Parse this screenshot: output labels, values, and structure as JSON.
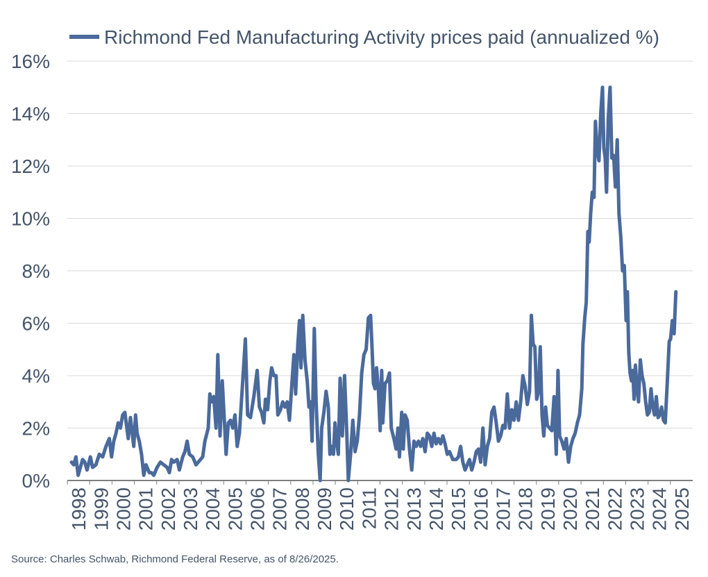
{
  "chart_data": {
    "type": "line",
    "title": "",
    "xlabel": "",
    "ylabel": "",
    "ylim": [
      0,
      16
    ],
    "y_ticks": [
      0,
      2,
      4,
      6,
      8,
      10,
      12,
      14,
      16
    ],
    "y_tick_labels": [
      "0%",
      "2%",
      "4%",
      "6%",
      "8%",
      "10%",
      "12%",
      "14%",
      "16%"
    ],
    "xlim": [
      1998.0,
      2025.75
    ],
    "x_tick_labels": [
      "1998",
      "1999",
      "2000",
      "2001",
      "2002",
      "2003",
      "2004",
      "2005",
      "2006",
      "2007",
      "2008",
      "2009",
      "2010",
      "2011",
      "2012",
      "2013",
      "2014",
      "2015",
      "2016",
      "2017",
      "2018",
      "2019",
      "2020",
      "2021",
      "2022",
      "2023",
      "2024",
      "2025"
    ],
    "grid": true,
    "legend_position": "top",
    "line_color": "#4a6a9c",
    "series": [
      {
        "name": "Richmond Fed Manufacturing Activity prices paid (annualized %)",
        "points": [
          [
            1998.0,
            0.7
          ],
          [
            1998.1,
            0.6
          ],
          [
            1998.2,
            0.9
          ],
          [
            1998.3,
            0.2
          ],
          [
            1998.5,
            0.8
          ],
          [
            1998.6,
            0.7
          ],
          [
            1998.7,
            0.4
          ],
          [
            1998.85,
            0.9
          ],
          [
            1998.95,
            0.5
          ],
          [
            1999.1,
            0.6
          ],
          [
            1999.25,
            1.0
          ],
          [
            1999.4,
            0.9
          ],
          [
            1999.55,
            1.3
          ],
          [
            1999.7,
            1.6
          ],
          [
            1999.8,
            0.9
          ],
          [
            1999.9,
            1.5
          ],
          [
            2000.0,
            1.8
          ],
          [
            2000.1,
            2.2
          ],
          [
            2000.2,
            2.0
          ],
          [
            2000.3,
            2.5
          ],
          [
            2000.4,
            2.6
          ],
          [
            2000.55,
            1.6
          ],
          [
            2000.65,
            2.4
          ],
          [
            2000.8,
            1.3
          ],
          [
            2000.88,
            2.5
          ],
          [
            2000.95,
            1.8
          ],
          [
            2001.05,
            1.5
          ],
          [
            2001.15,
            1.0
          ],
          [
            2001.25,
            0.2
          ],
          [
            2001.35,
            0.6
          ],
          [
            2001.5,
            0.3
          ],
          [
            2001.6,
            0.3
          ],
          [
            2001.7,
            0.2
          ],
          [
            2001.85,
            0.5
          ],
          [
            2002.0,
            0.7
          ],
          [
            2002.15,
            0.6
          ],
          [
            2002.3,
            0.5
          ],
          [
            2002.4,
            0.3
          ],
          [
            2002.5,
            0.8
          ],
          [
            2002.6,
            0.7
          ],
          [
            2002.75,
            0.8
          ],
          [
            2002.85,
            0.4
          ],
          [
            2003.0,
            0.9
          ],
          [
            2003.1,
            1.1
          ],
          [
            2003.2,
            1.5
          ],
          [
            2003.3,
            1.0
          ],
          [
            2003.45,
            0.9
          ],
          [
            2003.6,
            0.6
          ],
          [
            2003.8,
            0.8
          ],
          [
            2003.9,
            0.9
          ],
          [
            2004.0,
            1.5
          ],
          [
            2004.15,
            2.0
          ],
          [
            2004.22,
            3.3
          ],
          [
            2004.3,
            3.0
          ],
          [
            2004.4,
            3.2
          ],
          [
            2004.5,
            2.0
          ],
          [
            2004.58,
            4.8
          ],
          [
            2004.68,
            1.7
          ],
          [
            2004.78,
            3.8
          ],
          [
            2004.88,
            2.2
          ],
          [
            2004.95,
            1.0
          ],
          [
            2005.05,
            2.2
          ],
          [
            2005.15,
            2.3
          ],
          [
            2005.25,
            2.0
          ],
          [
            2005.35,
            2.5
          ],
          [
            2005.45,
            1.3
          ],
          [
            2005.55,
            1.8
          ],
          [
            2005.7,
            3.8
          ],
          [
            2005.82,
            5.4
          ],
          [
            2005.92,
            2.5
          ],
          [
            2006.05,
            2.4
          ],
          [
            2006.2,
            3.2
          ],
          [
            2006.35,
            4.2
          ],
          [
            2006.45,
            2.8
          ],
          [
            2006.55,
            2.6
          ],
          [
            2006.65,
            2.2
          ],
          [
            2006.72,
            3.1
          ],
          [
            2006.82,
            2.7
          ],
          [
            2006.92,
            3.8
          ],
          [
            2007.0,
            4.3
          ],
          [
            2007.1,
            4.0
          ],
          [
            2007.2,
            4.0
          ],
          [
            2007.28,
            2.5
          ],
          [
            2007.4,
            2.7
          ],
          [
            2007.5,
            3.0
          ],
          [
            2007.6,
            2.8
          ],
          [
            2007.7,
            3.0
          ],
          [
            2007.8,
            2.3
          ],
          [
            2007.92,
            3.8
          ],
          [
            2008.0,
            4.8
          ],
          [
            2008.08,
            3.3
          ],
          [
            2008.18,
            5.2
          ],
          [
            2008.25,
            6.1
          ],
          [
            2008.32,
            4.3
          ],
          [
            2008.4,
            6.3
          ],
          [
            2008.5,
            4.6
          ],
          [
            2008.6,
            3.8
          ],
          [
            2008.68,
            2.8
          ],
          [
            2008.75,
            3.0
          ],
          [
            2008.82,
            1.5
          ],
          [
            2008.92,
            5.8
          ],
          [
            2009.0,
            3.0
          ],
          [
            2009.1,
            1.0
          ],
          [
            2009.18,
            0.0
          ],
          [
            2009.25,
            2.0
          ],
          [
            2009.35,
            2.6
          ],
          [
            2009.45,
            3.4
          ],
          [
            2009.55,
            2.8
          ],
          [
            2009.62,
            1.0
          ],
          [
            2009.7,
            1.3
          ],
          [
            2009.78,
            1.0
          ],
          [
            2009.85,
            2.2
          ],
          [
            2009.92,
            1.5
          ],
          [
            2010.0,
            1.0
          ],
          [
            2010.08,
            3.9
          ],
          [
            2010.18,
            1.7
          ],
          [
            2010.28,
            4.0
          ],
          [
            2010.38,
            1.8
          ],
          [
            2010.45,
            0.0
          ],
          [
            2010.55,
            1.0
          ],
          [
            2010.65,
            2.3
          ],
          [
            2010.75,
            1.1
          ],
          [
            2010.85,
            1.5
          ],
          [
            2010.95,
            2.5
          ],
          [
            2011.05,
            4.1
          ],
          [
            2011.15,
            4.8
          ],
          [
            2011.25,
            5.0
          ],
          [
            2011.35,
            6.2
          ],
          [
            2011.45,
            6.3
          ],
          [
            2011.52,
            5.0
          ],
          [
            2011.58,
            3.7
          ],
          [
            2011.65,
            3.5
          ],
          [
            2011.72,
            4.3
          ],
          [
            2011.8,
            3.5
          ],
          [
            2011.88,
            1.9
          ],
          [
            2011.95,
            4.2
          ],
          [
            2012.0,
            2.2
          ],
          [
            2012.1,
            3.7
          ],
          [
            2012.2,
            3.8
          ],
          [
            2012.3,
            4.1
          ],
          [
            2012.38,
            2.0
          ],
          [
            2012.5,
            1.6
          ],
          [
            2012.6,
            1.2
          ],
          [
            2012.68,
            2.0
          ],
          [
            2012.75,
            0.9
          ],
          [
            2012.85,
            2.6
          ],
          [
            2012.92,
            1.2
          ],
          [
            2013.0,
            2.5
          ],
          [
            2013.1,
            2.3
          ],
          [
            2013.2,
            1.2
          ],
          [
            2013.3,
            0.4
          ],
          [
            2013.4,
            1.5
          ],
          [
            2013.5,
            1.3
          ],
          [
            2013.6,
            1.5
          ],
          [
            2013.7,
            1.3
          ],
          [
            2013.8,
            1.6
          ],
          [
            2013.9,
            1.1
          ],
          [
            2014.0,
            1.8
          ],
          [
            2014.1,
            1.7
          ],
          [
            2014.2,
            1.3
          ],
          [
            2014.3,
            1.8
          ],
          [
            2014.4,
            1.4
          ],
          [
            2014.5,
            1.6
          ],
          [
            2014.6,
            1.4
          ],
          [
            2014.7,
            1.7
          ],
          [
            2014.8,
            1.4
          ],
          [
            2014.9,
            1.0
          ],
          [
            2015.0,
            1.1
          ],
          [
            2015.15,
            0.8
          ],
          [
            2015.3,
            0.8
          ],
          [
            2015.4,
            0.9
          ],
          [
            2015.5,
            1.3
          ],
          [
            2015.6,
            0.7
          ],
          [
            2015.7,
            0.4
          ],
          [
            2015.8,
            0.6
          ],
          [
            2015.9,
            0.8
          ],
          [
            2016.0,
            0.4
          ],
          [
            2016.1,
            0.7
          ],
          [
            2016.2,
            1.1
          ],
          [
            2016.3,
            1.2
          ],
          [
            2016.4,
            0.7
          ],
          [
            2016.5,
            2.0
          ],
          [
            2016.6,
            0.6
          ],
          [
            2016.7,
            1.3
          ],
          [
            2016.8,
            1.6
          ],
          [
            2016.9,
            2.6
          ],
          [
            2017.0,
            2.8
          ],
          [
            2017.1,
            2.2
          ],
          [
            2017.2,
            1.5
          ],
          [
            2017.3,
            1.7
          ],
          [
            2017.4,
            2.1
          ],
          [
            2017.5,
            2.0
          ],
          [
            2017.6,
            3.3
          ],
          [
            2017.7,
            2.0
          ],
          [
            2017.8,
            2.7
          ],
          [
            2017.9,
            2.3
          ],
          [
            2018.0,
            3.0
          ],
          [
            2018.1,
            2.3
          ],
          [
            2018.2,
            3.0
          ],
          [
            2018.3,
            4.0
          ],
          [
            2018.4,
            3.6
          ],
          [
            2018.5,
            2.9
          ],
          [
            2018.6,
            3.4
          ],
          [
            2018.68,
            6.3
          ],
          [
            2018.76,
            5.2
          ],
          [
            2018.84,
            5.1
          ],
          [
            2018.92,
            3.1
          ],
          [
            2019.0,
            3.4
          ],
          [
            2019.08,
            5.1
          ],
          [
            2019.16,
            2.5
          ],
          [
            2019.24,
            1.7
          ],
          [
            2019.32,
            2.8
          ],
          [
            2019.4,
            2.1
          ],
          [
            2019.5,
            2.0
          ],
          [
            2019.6,
            1.9
          ],
          [
            2019.7,
            3.2
          ],
          [
            2019.8,
            1.0
          ],
          [
            2019.88,
            4.2
          ],
          [
            2019.95,
            1.7
          ],
          [
            2020.05,
            1.5
          ],
          [
            2020.15,
            1.2
          ],
          [
            2020.25,
            1.6
          ],
          [
            2020.35,
            0.7
          ],
          [
            2020.45,
            1.3
          ],
          [
            2020.55,
            1.6
          ],
          [
            2020.65,
            1.8
          ],
          [
            2020.75,
            2.2
          ],
          [
            2020.85,
            2.5
          ],
          [
            2020.95,
            3.5
          ],
          [
            2021.0,
            5.2
          ],
          [
            2021.08,
            6.2
          ],
          [
            2021.15,
            6.8
          ],
          [
            2021.22,
            9.5
          ],
          [
            2021.28,
            9.1
          ],
          [
            2021.35,
            10.2
          ],
          [
            2021.42,
            11.0
          ],
          [
            2021.5,
            10.8
          ],
          [
            2021.56,
            13.7
          ],
          [
            2021.64,
            12.6
          ],
          [
            2021.72,
            12.2
          ],
          [
            2021.8,
            14.0
          ],
          [
            2021.88,
            15.0
          ],
          [
            2021.94,
            12.7
          ],
          [
            2022.0,
            12.3
          ],
          [
            2022.06,
            11.0
          ],
          [
            2022.14,
            13.8
          ],
          [
            2022.22,
            15.0
          ],
          [
            2022.3,
            12.3
          ],
          [
            2022.38,
            12.4
          ],
          [
            2022.46,
            11.2
          ],
          [
            2022.54,
            13.0
          ],
          [
            2022.62,
            10.2
          ],
          [
            2022.7,
            9.3
          ],
          [
            2022.78,
            8.0
          ],
          [
            2022.86,
            8.2
          ],
          [
            2022.94,
            6.1
          ],
          [
            2023.0,
            7.2
          ],
          [
            2023.06,
            4.9
          ],
          [
            2023.12,
            4.1
          ],
          [
            2023.18,
            3.8
          ],
          [
            2023.24,
            4.2
          ],
          [
            2023.3,
            3.1
          ],
          [
            2023.36,
            4.4
          ],
          [
            2023.42,
            3.6
          ],
          [
            2023.5,
            3.0
          ],
          [
            2023.58,
            4.6
          ],
          [
            2023.66,
            4.0
          ],
          [
            2023.74,
            3.7
          ],
          [
            2023.82,
            3.0
          ],
          [
            2023.9,
            2.5
          ],
          [
            2023.98,
            2.6
          ],
          [
            2024.06,
            3.5
          ],
          [
            2024.14,
            2.8
          ],
          [
            2024.22,
            2.5
          ],
          [
            2024.3,
            3.2
          ],
          [
            2024.38,
            2.4
          ],
          [
            2024.46,
            2.5
          ],
          [
            2024.54,
            2.8
          ],
          [
            2024.62,
            2.3
          ],
          [
            2024.7,
            2.2
          ],
          [
            2024.8,
            3.9
          ],
          [
            2024.88,
            5.3
          ],
          [
            2024.94,
            5.4
          ],
          [
            2025.02,
            6.1
          ],
          [
            2025.1,
            5.6
          ],
          [
            2025.18,
            7.2
          ]
        ]
      }
    ],
    "source": "Source: Charles Schwab, Richmond Federal Reserve, as of 8/26/2025."
  }
}
